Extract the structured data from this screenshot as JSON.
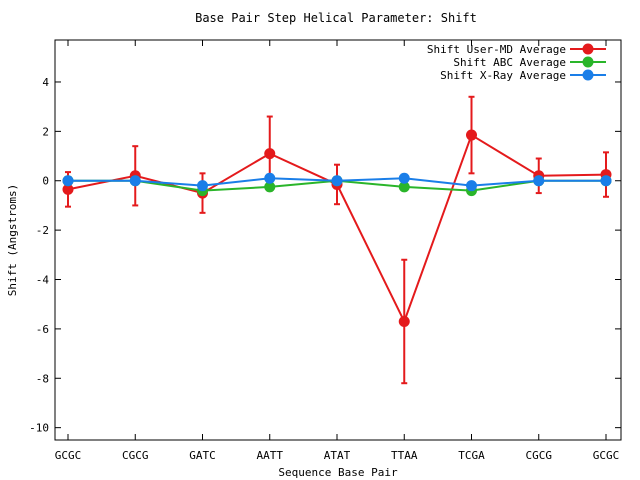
{
  "chart_data": {
    "type": "line",
    "title": "Base Pair Step Helical Parameter: Shift",
    "xlabel": "Sequence Base Pair",
    "ylabel": "Shift (Angstroms)",
    "categories": [
      "GCGC",
      "CGCG",
      "GATC",
      "AATT",
      "ATAT",
      "TTAA",
      "TCGA",
      "CGCG",
      "GCGC"
    ],
    "ylim": [
      -10.5,
      5.7
    ],
    "yticks": [
      4,
      2,
      0,
      -2,
      -4,
      -6,
      -8,
      -10
    ],
    "grid": false,
    "legend_position": "top-right",
    "series": [
      {
        "name": "Shift User-MD Average",
        "color": "#e41a1c",
        "values": [
          -0.35,
          0.2,
          -0.5,
          1.1,
          -0.15,
          -5.7,
          1.85,
          0.2,
          0.25
        ],
        "errors": [
          0.7,
          1.2,
          0.8,
          1.5,
          0.8,
          2.5,
          1.55,
          0.7,
          0.9
        ]
      },
      {
        "name": "Shift ABC Average",
        "color": "#2ab52a",
        "values": [
          0.0,
          0.0,
          -0.4,
          -0.25,
          0.0,
          -0.25,
          -0.4,
          0.0,
          0.0
        ]
      },
      {
        "name": "Shift X-Ray Average",
        "color": "#1a7ee8",
        "values": [
          0.0,
          0.0,
          -0.2,
          0.1,
          0.0,
          0.1,
          -0.2,
          0.0,
          0.0
        ]
      }
    ]
  }
}
